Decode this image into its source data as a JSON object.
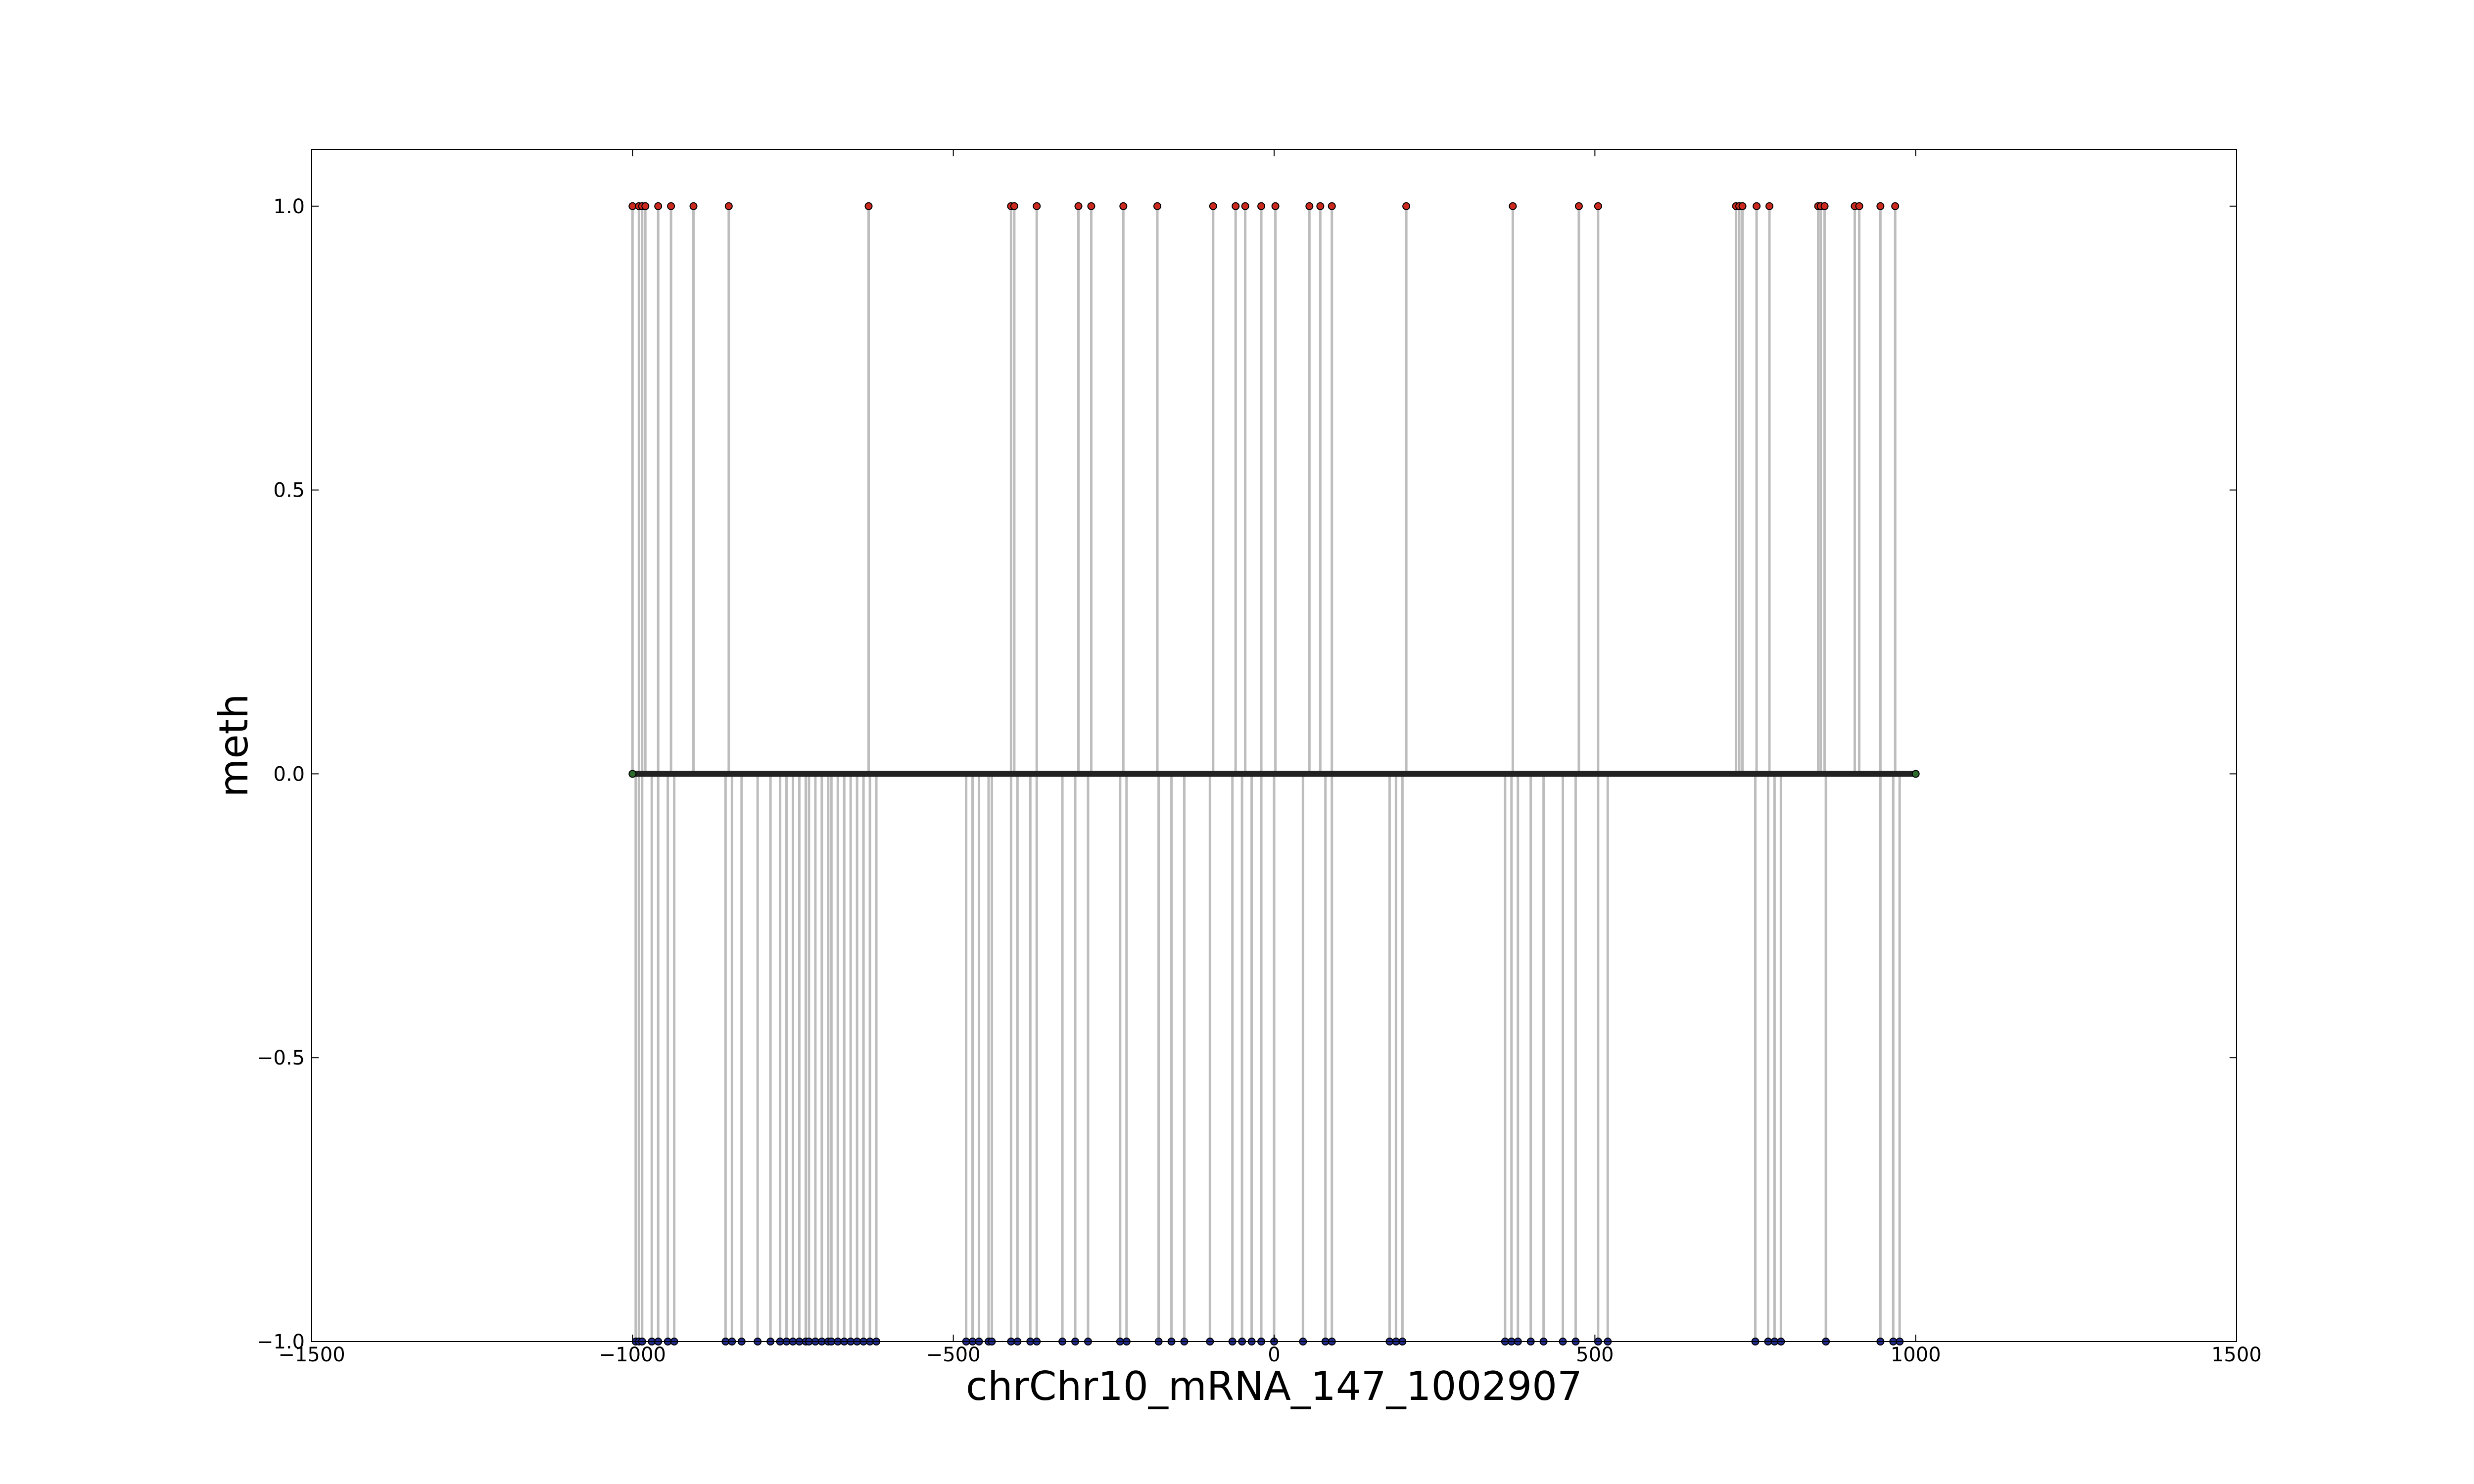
{
  "chart_data": {
    "type": "scatter",
    "title": "",
    "xlabel": "chrChr10_mRNA_147_1002907",
    "ylabel": "meth",
    "xlim": [
      -1500,
      1500
    ],
    "ylim": [
      -1,
      1.1
    ],
    "x_ticks": [
      -1500,
      -1000,
      -500,
      0,
      500,
      1000,
      1500
    ],
    "x_tick_labels": [
      "−1500",
      "−1000",
      "−500",
      "0",
      "500",
      "1000",
      "1500"
    ],
    "y_ticks": [
      -1,
      -0.5,
      0,
      0.5,
      1
    ],
    "y_tick_labels": [
      "−1.0",
      "−0.5",
      "0.0",
      "0.5",
      "1.0"
    ],
    "grid": false,
    "colors": {
      "methylated": "#cc2a1e",
      "unmethylated": "#1f2a8a",
      "zero": "#2d6b2d",
      "stem": "#bdbdbd",
      "baseline": "#222222"
    },
    "series": [
      {
        "key": "methylated",
        "y": 1,
        "x": [
          -1000,
          -990,
          -985,
          -980,
          -960,
          -940,
          -905,
          -850,
          -632,
          -410,
          -405,
          -370,
          -305,
          -285,
          -235,
          -182,
          -95,
          -60,
          -45,
          -20,
          2,
          55,
          72,
          90,
          206,
          372,
          475,
          505,
          720,
          725,
          730,
          752,
          772,
          848,
          852,
          858,
          905,
          912,
          945,
          968
        ]
      },
      {
        "key": "unmethylated",
        "y": -1,
        "x": [
          -995,
          -990,
          -985,
          -970,
          -960,
          -945,
          -935,
          -855,
          -845,
          -830,
          -805,
          -785,
          -770,
          -760,
          -750,
          -740,
          -730,
          -725,
          -715,
          -705,
          -695,
          -690,
          -680,
          -670,
          -660,
          -650,
          -640,
          -630,
          -620,
          -480,
          -470,
          -460,
          -445,
          -440,
          -410,
          -400,
          -380,
          -370,
          -330,
          -310,
          -290,
          -240,
          -230,
          -180,
          -160,
          -140,
          -100,
          -65,
          -50,
          -35,
          -20,
          0,
          45,
          80,
          90,
          180,
          190,
          200,
          360,
          370,
          380,
          400,
          420,
          450,
          470,
          505,
          520,
          750,
          770,
          780,
          790,
          860,
          945,
          965,
          975
        ]
      }
    ],
    "zero_range": [
      -1000,
      1000
    ]
  }
}
